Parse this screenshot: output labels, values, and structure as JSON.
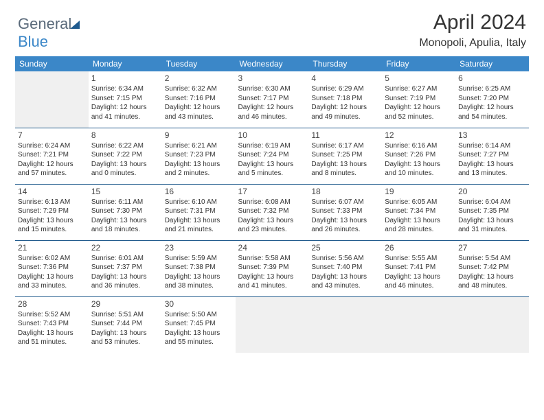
{
  "logo": {
    "part1": "General",
    "part2": "Blue"
  },
  "title": "April 2024",
  "location": "Monopoli, Apulia, Italy",
  "colors": {
    "header_bg": "#3b87c8",
    "header_text": "#ffffff",
    "border": "#205a8c",
    "blank_bg": "#f0f0f0",
    "body_text": "#333333",
    "logo_gray": "#5a6a7a",
    "logo_blue": "#3b87c8"
  },
  "dayHeaders": [
    "Sunday",
    "Monday",
    "Tuesday",
    "Wednesday",
    "Thursday",
    "Friday",
    "Saturday"
  ],
  "weeks": [
    [
      null,
      {
        "n": "1",
        "sr": "6:34 AM",
        "ss": "7:15 PM",
        "dl": "12 hours and 41 minutes."
      },
      {
        "n": "2",
        "sr": "6:32 AM",
        "ss": "7:16 PM",
        "dl": "12 hours and 43 minutes."
      },
      {
        "n": "3",
        "sr": "6:30 AM",
        "ss": "7:17 PM",
        "dl": "12 hours and 46 minutes."
      },
      {
        "n": "4",
        "sr": "6:29 AM",
        "ss": "7:18 PM",
        "dl": "12 hours and 49 minutes."
      },
      {
        "n": "5",
        "sr": "6:27 AM",
        "ss": "7:19 PM",
        "dl": "12 hours and 52 minutes."
      },
      {
        "n": "6",
        "sr": "6:25 AM",
        "ss": "7:20 PM",
        "dl": "12 hours and 54 minutes."
      }
    ],
    [
      {
        "n": "7",
        "sr": "6:24 AM",
        "ss": "7:21 PM",
        "dl": "12 hours and 57 minutes."
      },
      {
        "n": "8",
        "sr": "6:22 AM",
        "ss": "7:22 PM",
        "dl": "13 hours and 0 minutes."
      },
      {
        "n": "9",
        "sr": "6:21 AM",
        "ss": "7:23 PM",
        "dl": "13 hours and 2 minutes."
      },
      {
        "n": "10",
        "sr": "6:19 AM",
        "ss": "7:24 PM",
        "dl": "13 hours and 5 minutes."
      },
      {
        "n": "11",
        "sr": "6:17 AM",
        "ss": "7:25 PM",
        "dl": "13 hours and 8 minutes."
      },
      {
        "n": "12",
        "sr": "6:16 AM",
        "ss": "7:26 PM",
        "dl": "13 hours and 10 minutes."
      },
      {
        "n": "13",
        "sr": "6:14 AM",
        "ss": "7:27 PM",
        "dl": "13 hours and 13 minutes."
      }
    ],
    [
      {
        "n": "14",
        "sr": "6:13 AM",
        "ss": "7:29 PM",
        "dl": "13 hours and 15 minutes."
      },
      {
        "n": "15",
        "sr": "6:11 AM",
        "ss": "7:30 PM",
        "dl": "13 hours and 18 minutes."
      },
      {
        "n": "16",
        "sr": "6:10 AM",
        "ss": "7:31 PM",
        "dl": "13 hours and 21 minutes."
      },
      {
        "n": "17",
        "sr": "6:08 AM",
        "ss": "7:32 PM",
        "dl": "13 hours and 23 minutes."
      },
      {
        "n": "18",
        "sr": "6:07 AM",
        "ss": "7:33 PM",
        "dl": "13 hours and 26 minutes."
      },
      {
        "n": "19",
        "sr": "6:05 AM",
        "ss": "7:34 PM",
        "dl": "13 hours and 28 minutes."
      },
      {
        "n": "20",
        "sr": "6:04 AM",
        "ss": "7:35 PM",
        "dl": "13 hours and 31 minutes."
      }
    ],
    [
      {
        "n": "21",
        "sr": "6:02 AM",
        "ss": "7:36 PM",
        "dl": "13 hours and 33 minutes."
      },
      {
        "n": "22",
        "sr": "6:01 AM",
        "ss": "7:37 PM",
        "dl": "13 hours and 36 minutes."
      },
      {
        "n": "23",
        "sr": "5:59 AM",
        "ss": "7:38 PM",
        "dl": "13 hours and 38 minutes."
      },
      {
        "n": "24",
        "sr": "5:58 AM",
        "ss": "7:39 PM",
        "dl": "13 hours and 41 minutes."
      },
      {
        "n": "25",
        "sr": "5:56 AM",
        "ss": "7:40 PM",
        "dl": "13 hours and 43 minutes."
      },
      {
        "n": "26",
        "sr": "5:55 AM",
        "ss": "7:41 PM",
        "dl": "13 hours and 46 minutes."
      },
      {
        "n": "27",
        "sr": "5:54 AM",
        "ss": "7:42 PM",
        "dl": "13 hours and 48 minutes."
      }
    ],
    [
      {
        "n": "28",
        "sr": "5:52 AM",
        "ss": "7:43 PM",
        "dl": "13 hours and 51 minutes."
      },
      {
        "n": "29",
        "sr": "5:51 AM",
        "ss": "7:44 PM",
        "dl": "13 hours and 53 minutes."
      },
      {
        "n": "30",
        "sr": "5:50 AM",
        "ss": "7:45 PM",
        "dl": "13 hours and 55 minutes."
      },
      null,
      null,
      null,
      null
    ]
  ],
  "labels": {
    "sunrise": "Sunrise: ",
    "sunset": "Sunset: ",
    "daylight": "Daylight: "
  }
}
